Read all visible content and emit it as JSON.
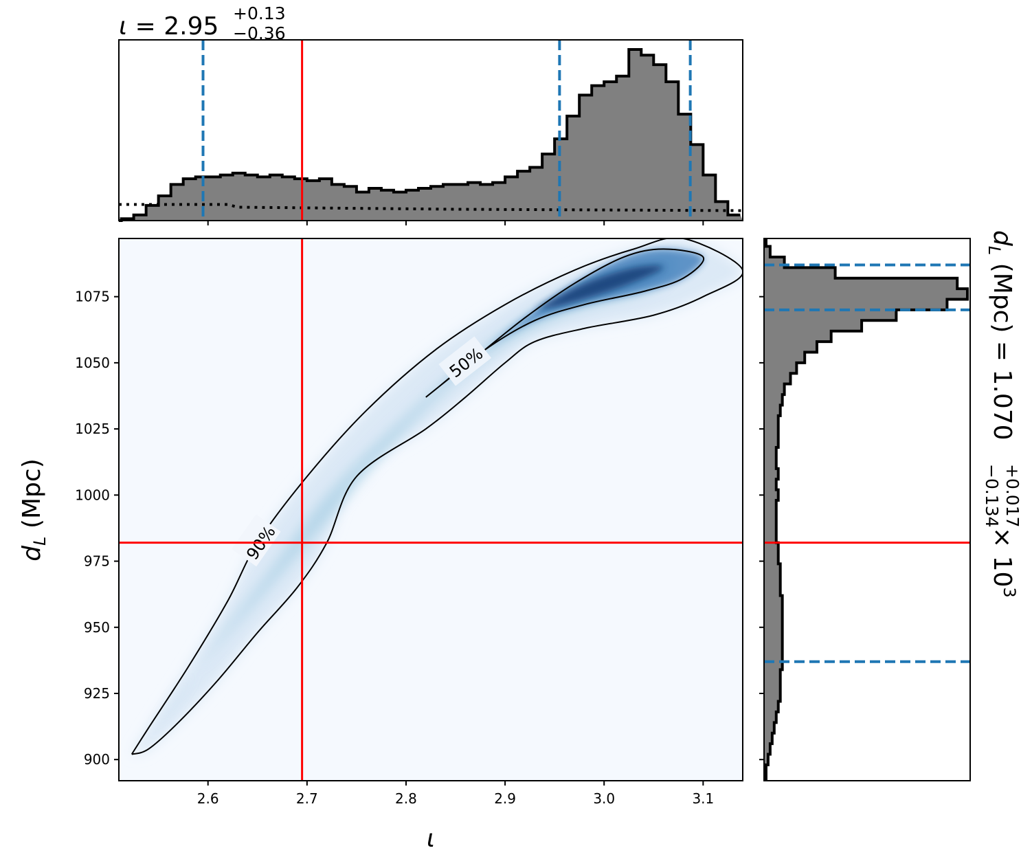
{
  "chart_data": {
    "type": "corner",
    "colors": {
      "histogram_fill": "#808080",
      "histogram_edge": "#000000",
      "credible_interval": "#1f77b4",
      "injection": "#ff0000",
      "density_low": "#f5f9fe",
      "density_high": "#08306b"
    },
    "top_title": {
      "param": "ι",
      "median": "2.95",
      "plus": "+0.13",
      "minus": "−0.36"
    },
    "right_title": {
      "label": "d",
      "subscript": "L",
      "unit": " (Mpc) = 1.070",
      "plus": "+0.017",
      "minus": "−0.134",
      "scale": "× 10",
      "exponent": "3"
    },
    "xlabel": "ι",
    "ylabel": {
      "main": "d",
      "subscript": "L",
      "unit": " (Mpc)"
    },
    "xlim": [
      2.51,
      3.14
    ],
    "ylim": [
      892,
      1097
    ],
    "xticks": [
      2.6,
      2.7,
      2.8,
      2.9,
      3.0,
      3.1
    ],
    "xtick_labels": [
      "2.6",
      "2.7",
      "2.8",
      "2.9",
      "3.0",
      "3.1"
    ],
    "yticks": [
      900,
      925,
      950,
      975,
      1000,
      1025,
      1050,
      1075
    ],
    "ytick_labels": [
      "900",
      "925",
      "950",
      "975",
      "1000",
      "1025",
      "1050",
      "1075"
    ],
    "injection": {
      "iota": 2.695,
      "dL": 982
    },
    "iota_interval": [
      2.595,
      2.955,
      3.087
    ],
    "dL_interval": [
      937,
      1070,
      1087
    ],
    "contour_levels": [
      "50%",
      "90%"
    ],
    "contour_90": [
      [
        2.523,
        902
      ],
      [
        2.54,
        912
      ],
      [
        2.58,
        935
      ],
      [
        2.62,
        960
      ],
      [
        2.65,
        982
      ],
      [
        2.7,
        1007
      ],
      [
        2.76,
        1032
      ],
      [
        2.83,
        1055
      ],
      [
        2.9,
        1072
      ],
      [
        2.97,
        1085
      ],
      [
        3.03,
        1093
      ],
      [
        3.08,
        1097
      ],
      [
        3.14,
        1085
      ],
      [
        3.1,
        1075
      ],
      [
        3.05,
        1068
      ],
      [
        2.98,
        1063
      ],
      [
        2.93,
        1058
      ],
      [
        2.9,
        1050
      ],
      [
        2.86,
        1037
      ],
      [
        2.82,
        1025
      ],
      [
        2.75,
        1007
      ],
      [
        2.72,
        982
      ],
      [
        2.69,
        965
      ],
      [
        2.65,
        948
      ],
      [
        2.61,
        930
      ],
      [
        2.57,
        914
      ],
      [
        2.54,
        904
      ],
      [
        2.523,
        902
      ]
    ],
    "contour_50": [
      [
        2.82,
        1037
      ],
      [
        2.87,
        1052
      ],
      [
        2.92,
        1067
      ],
      [
        2.97,
        1080
      ],
      [
        3.02,
        1090
      ],
      [
        3.06,
        1093
      ],
      [
        3.1,
        1090
      ],
      [
        3.08,
        1082
      ],
      [
        3.04,
        1077
      ],
      [
        2.98,
        1072
      ],
      [
        2.93,
        1066
      ],
      [
        2.88,
        1055
      ],
      [
        2.83,
        1040
      ],
      [
        2.82,
        1037
      ]
    ],
    "iota_hist": {
      "bin_edges_start": 2.5,
      "bin_width": 0.0125,
      "counts": [
        0.0,
        0.01,
        0.03,
        0.08,
        0.13,
        0.19,
        0.22,
        0.23,
        0.23,
        0.24,
        0.25,
        0.24,
        0.23,
        0.24,
        0.23,
        0.22,
        0.21,
        0.22,
        0.19,
        0.18,
        0.15,
        0.17,
        0.16,
        0.15,
        0.16,
        0.17,
        0.18,
        0.19,
        0.19,
        0.2,
        0.19,
        0.2,
        0.23,
        0.26,
        0.28,
        0.35,
        0.43,
        0.55,
        0.66,
        0.71,
        0.73,
        0.76,
        0.9,
        0.87,
        0.82,
        0.73,
        0.56,
        0.4,
        0.24,
        0.1,
        0.03
      ]
    },
    "iota_prior_level": 0.085,
    "dL_hist": {
      "bin_edges_start": 890,
      "bin_width": 4,
      "counts": [
        0.01,
        0.01,
        0.02,
        0.03,
        0.04,
        0.05,
        0.06,
        0.07,
        0.08,
        0.08,
        0.08,
        0.09,
        0.09,
        0.09,
        0.09,
        0.09,
        0.09,
        0.09,
        0.08,
        0.08,
        0.08,
        0.07,
        0.07,
        0.06,
        0.06,
        0.06,
        0.06,
        0.07,
        0.06,
        0.07,
        0.06,
        0.06,
        0.07,
        0.07,
        0.07,
        0.08,
        0.09,
        0.1,
        0.13,
        0.16,
        0.2,
        0.26,
        0.33,
        0.48,
        0.65,
        0.9,
        1.0,
        0.95,
        0.35,
        0.1,
        0.03,
        0.01
      ]
    }
  }
}
